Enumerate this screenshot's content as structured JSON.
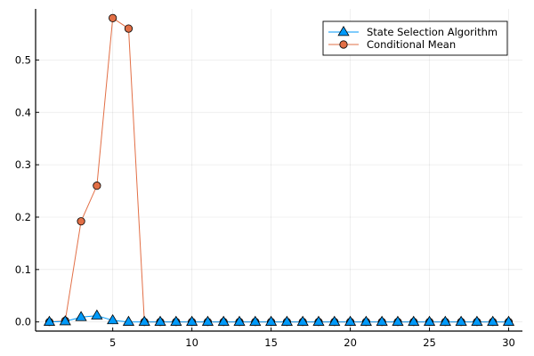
{
  "colors": {
    "series1": "#009AFA",
    "series2": "#E26F46",
    "background": "#FFFFFF",
    "axis": "#000000"
  },
  "chart_data": {
    "type": "line",
    "title": "",
    "xlabel": "",
    "ylabel": "",
    "xlim": [
      0.13,
      30.87
    ],
    "ylim": [
      -0.0175,
      0.5975
    ],
    "xticks": [
      5,
      10,
      15,
      20,
      25,
      30
    ],
    "xtick_labels": [
      "5",
      "10",
      "15",
      "20",
      "25",
      "30"
    ],
    "yticks": [
      0.0,
      0.1,
      0.2,
      0.3,
      0.4,
      0.5
    ],
    "ytick_labels": [
      "0.0",
      "0.1",
      "0.2",
      "0.3",
      "0.4",
      "0.5"
    ],
    "grid": true,
    "legend_position": "top-right",
    "x": [
      1,
      2,
      3,
      4,
      5,
      6,
      7,
      8,
      9,
      10,
      11,
      12,
      13,
      14,
      15,
      16,
      17,
      18,
      19,
      20,
      21,
      22,
      23,
      24,
      25,
      26,
      27,
      28,
      29,
      30
    ],
    "series": [
      {
        "name": "State Selection Algorithm",
        "marker": "triangle",
        "color": "#009AFA",
        "values": [
          0.0,
          0.001,
          0.009,
          0.012,
          0.003,
          0.0,
          0.0,
          0.0,
          0.0,
          0.0,
          0.0,
          0.0,
          0.0,
          0.0,
          0.0,
          0.0,
          0.0,
          0.0,
          0.0,
          0.0,
          0.0,
          0.0,
          0.0,
          0.0,
          0.0,
          0.0,
          0.0,
          0.0,
          0.0,
          0.0
        ]
      },
      {
        "name": "Conditional Mean",
        "marker": "circle",
        "color": "#E26F46",
        "values": [
          0.0,
          0.002,
          0.192,
          0.26,
          0.58,
          0.56,
          0.0,
          0.0,
          0.0,
          0.0,
          0.0,
          0.0,
          0.0,
          0.0,
          0.0,
          0.0,
          0.0,
          0.0,
          0.0,
          0.0,
          0.0,
          0.0,
          0.0,
          0.0,
          0.0,
          0.0,
          0.0,
          0.0,
          0.0,
          0.0
        ]
      }
    ]
  }
}
